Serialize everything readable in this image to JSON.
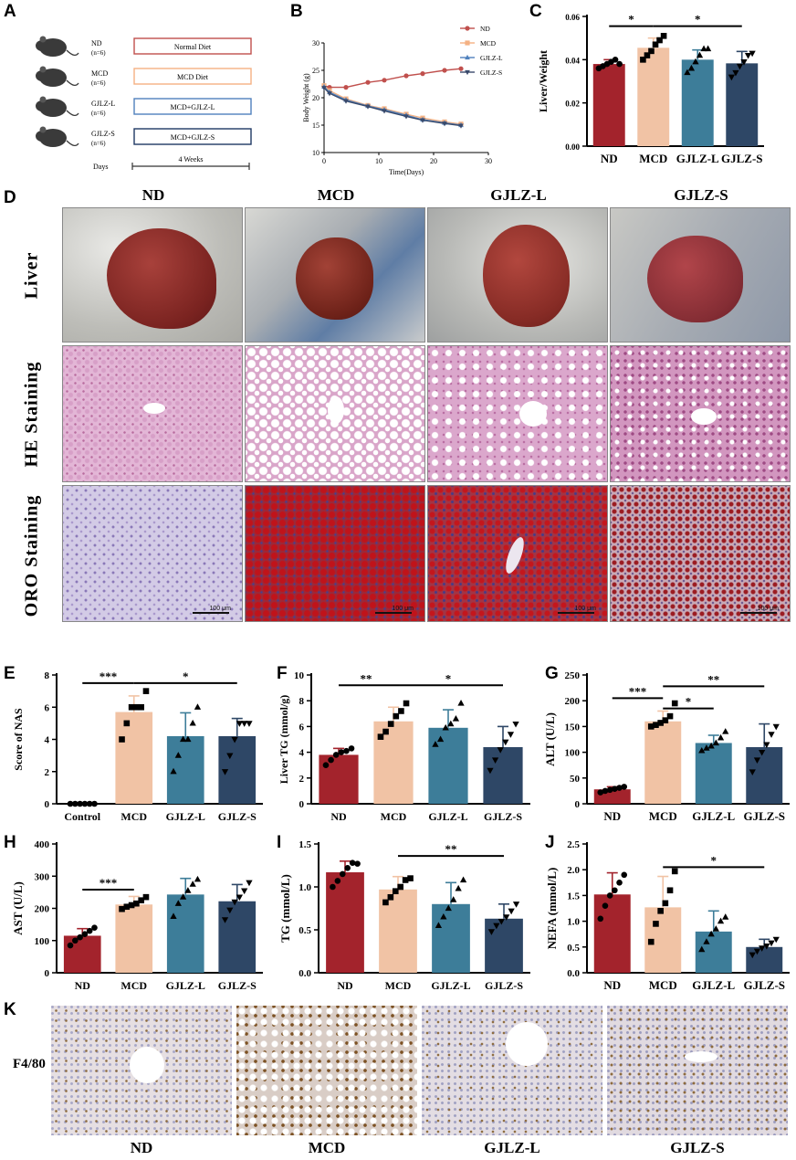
{
  "panels": {
    "A": "A",
    "B": "B",
    "C": "C",
    "D": "D",
    "E": "E",
    "F": "F",
    "G": "G",
    "H": "H",
    "I": "I",
    "J": "J",
    "K": "K"
  },
  "panel_a": {
    "groups": [
      {
        "name": "ND",
        "n": "(n=6)",
        "diet": "Normal Diet",
        "color": "#c0504d"
      },
      {
        "name": "MCD",
        "n": "(n=6)",
        "diet": "MCD Diet",
        "color": "#f4b183"
      },
      {
        "name": "GJLZ-L",
        "n": "(n=6)",
        "diet": "MCD+GJLZ-L",
        "color": "#4f81bd"
      },
      {
        "name": "GJLZ-S",
        "n": "(n=6)",
        "diet": "MCD+GJLZ-S",
        "color": "#1f3864"
      }
    ],
    "days_label": "Days",
    "duration": "4 Weeks"
  },
  "panel_d": {
    "columns": [
      "ND",
      "MCD",
      "GJLZ-L",
      "GJLZ-S"
    ],
    "rows": [
      "Liver",
      "HE Staining",
      "ORO Staining"
    ],
    "scalebar": "100 μm"
  },
  "panel_k": {
    "row_label": "F4/80",
    "columns": [
      "ND",
      "MCD",
      "GJLZ-L",
      "GJLZ-S"
    ]
  },
  "colors": {
    "ND": "#a3232c",
    "MCD": "#f1c3a5",
    "GJLZL": "#3d7d99",
    "GJLZS": "#2e4766"
  },
  "chart_data": [
    {
      "id": "B",
      "type": "line",
      "xlabel": "Time(Days)",
      "ylabel": "Body Weight (g)",
      "xlim": [
        0,
        30
      ],
      "ylim": [
        10,
        30
      ],
      "xticks": [
        0,
        10,
        20,
        30
      ],
      "yticks": [
        10,
        15,
        20,
        25,
        30
      ],
      "legend": "top-right",
      "series": [
        {
          "name": "ND",
          "color": "#c0504d",
          "marker": "circle",
          "x": [
            0,
            1,
            4,
            8,
            11,
            15,
            18,
            22,
            25
          ],
          "y": [
            22.2,
            21.9,
            21.9,
            22.8,
            23.2,
            24.0,
            24.4,
            25.0,
            25.3
          ]
        },
        {
          "name": "MCD",
          "color": "#f4b183",
          "marker": "square",
          "x": [
            0,
            1,
            4,
            8,
            11,
            15,
            18,
            22,
            25
          ],
          "y": [
            22.2,
            21.3,
            19.8,
            18.6,
            18.0,
            17.0,
            16.3,
            15.6,
            15.2
          ]
        },
        {
          "name": "GJLZ-L",
          "color": "#4f81bd",
          "marker": "triangle",
          "x": [
            0,
            1,
            4,
            8,
            11,
            15,
            18,
            22,
            25
          ],
          "y": [
            22.0,
            21.0,
            19.6,
            18.5,
            17.8,
            16.8,
            16.0,
            15.4,
            15.0
          ]
        },
        {
          "name": "GJLZ-S",
          "color": "#3a4a6b",
          "marker": "triangle-down",
          "x": [
            0,
            1,
            4,
            8,
            11,
            15,
            18,
            22,
            25
          ],
          "y": [
            21.8,
            20.8,
            19.4,
            18.4,
            17.6,
            16.6,
            15.9,
            15.3,
            14.9
          ]
        }
      ]
    },
    {
      "id": "C",
      "type": "bar",
      "ylabel": "Liver/Weight",
      "categories": [
        "ND",
        "MCD",
        "GJLZ-L",
        "GJLZ-S"
      ],
      "values": [
        0.038,
        0.0455,
        0.04,
        0.0383
      ],
      "errors": [
        0.002,
        0.0045,
        0.0045,
        0.0055
      ],
      "points": [
        [
          0.036,
          0.037,
          0.038,
          0.039,
          0.04,
          0.038
        ],
        [
          0.04,
          0.042,
          0.044,
          0.047,
          0.049,
          0.051
        ],
        [
          0.034,
          0.036,
          0.039,
          0.042,
          0.045,
          0.045
        ],
        [
          0.032,
          0.034,
          0.037,
          0.039,
          0.042,
          0.043
        ]
      ],
      "markers": [
        "circle",
        "square",
        "triangle",
        "triangle-down"
      ],
      "ylim": [
        0,
        0.06
      ],
      "yticks": [
        0.0,
        0.02,
        0.04,
        0.06
      ],
      "tick_fmt": "2",
      "sig": [
        {
          "from": 0,
          "to": 1,
          "text": "*",
          "y": 0.0555
        },
        {
          "from": 1,
          "to": 3,
          "text": "*",
          "y": 0.0555
        }
      ]
    },
    {
      "id": "E",
      "type": "bar",
      "ylabel": "Score of NAS",
      "categories": [
        "Control",
        "MCD",
        "GJLZ-L",
        "GJLZ-S"
      ],
      "values": [
        0,
        5.7,
        4.2,
        4.2
      ],
      "errors": [
        0,
        1.0,
        1.45,
        1.1
      ],
      "points": [
        [
          0,
          0,
          0,
          0,
          0,
          0
        ],
        [
          4,
          5,
          6,
          6,
          6,
          7
        ],
        [
          2,
          3,
          4,
          4,
          5,
          6
        ],
        [
          2,
          3,
          4,
          5,
          5,
          5
        ]
      ],
      "markers": [
        "circle",
        "square",
        "triangle",
        "triangle-down"
      ],
      "ylim": [
        0,
        8
      ],
      "yticks": [
        0,
        2,
        4,
        6,
        8
      ],
      "tick_fmt": "0",
      "sig": [
        {
          "from": 0,
          "to": 1,
          "text": "***",
          "y": 7.5
        },
        {
          "from": 1,
          "to": 3,
          "text": "*",
          "y": 7.5
        }
      ]
    },
    {
      "id": "F",
      "type": "bar",
      "ylabel": "Liver TG (mmol/g)",
      "categories": [
        "ND",
        "MCD",
        "GJLZ-L",
        "GJLZ-S"
      ],
      "values": [
        3.8,
        6.4,
        5.9,
        4.4
      ],
      "errors": [
        0.5,
        1.1,
        1.4,
        1.6
      ],
      "points": [
        [
          3.0,
          3.4,
          3.8,
          4.0,
          4.1,
          4.3
        ],
        [
          5.2,
          5.6,
          6.2,
          6.8,
          7.2,
          7.8
        ],
        [
          4.6,
          5.0,
          5.9,
          6.2,
          6.6,
          7.8
        ],
        [
          2.6,
          3.4,
          4.2,
          4.8,
          5.4,
          6.2
        ]
      ],
      "markers": [
        "circle",
        "square",
        "triangle",
        "triangle-down"
      ],
      "ylim": [
        0,
        10
      ],
      "yticks": [
        0,
        2,
        4,
        6,
        8,
        10
      ],
      "tick_fmt": "0",
      "sig": [
        {
          "from": 0,
          "to": 1,
          "text": "**",
          "y": 9.2
        },
        {
          "from": 1,
          "to": 3,
          "text": "*",
          "y": 9.2
        }
      ]
    },
    {
      "id": "G",
      "type": "bar",
      "ylabel": "ALT (U/L)",
      "categories": [
        "ND",
        "MCD",
        "GJLZ-L",
        "GJLZ-S"
      ],
      "values": [
        28,
        160,
        118,
        110
      ],
      "errors": [
        5,
        20,
        15,
        45
      ],
      "points": [
        [
          22,
          25,
          27,
          29,
          31,
          33
        ],
        [
          150,
          153,
          157,
          162,
          170,
          195
        ],
        [
          103,
          108,
          112,
          118,
          128,
          140
        ],
        [
          62,
          85,
          100,
          115,
          135,
          150
        ]
      ],
      "markers": [
        "circle",
        "square",
        "triangle",
        "triangle-down"
      ],
      "ylim": [
        0,
        250
      ],
      "yticks": [
        0,
        50,
        100,
        150,
        200,
        250
      ],
      "tick_fmt": "0",
      "sig": [
        {
          "from": 0,
          "to": 1,
          "text": "***",
          "y": 205
        },
        {
          "from": 1,
          "to": 2,
          "text": "*",
          "y": 185
        },
        {
          "from": 1,
          "to": 3,
          "text": "**",
          "y": 228
        }
      ]
    },
    {
      "id": "H",
      "type": "bar",
      "ylabel": "AST (U/L)",
      "categories": [
        "ND",
        "MCD",
        "GJLZ-L",
        "GJLZ-S"
      ],
      "values": [
        115,
        212,
        243,
        222
      ],
      "errors": [
        22,
        25,
        50,
        52
      ],
      "points": [
        [
          85,
          100,
          110,
          120,
          130,
          140
        ],
        [
          198,
          205,
          210,
          215,
          225,
          235
        ],
        [
          175,
          215,
          235,
          255,
          275,
          290
        ],
        [
          165,
          195,
          220,
          235,
          255,
          280
        ]
      ],
      "markers": [
        "circle",
        "square",
        "triangle",
        "triangle-down"
      ],
      "ylim": [
        0,
        400
      ],
      "yticks": [
        0,
        100,
        200,
        300,
        400
      ],
      "tick_fmt": "0",
      "sig": [
        {
          "from": 0,
          "to": 1,
          "text": "***",
          "y": 258
        }
      ]
    },
    {
      "id": "I",
      "type": "bar",
      "ylabel": "TG (mmol/L)",
      "categories": [
        "ND",
        "MCD",
        "GJLZ-L",
        "GJLZ-S"
      ],
      "values": [
        1.17,
        0.97,
        0.8,
        0.63
      ],
      "errors": [
        0.13,
        0.15,
        0.25,
        0.17
      ],
      "points": [
        [
          1.0,
          1.07,
          1.15,
          1.22,
          1.28,
          1.27
        ],
        [
          0.82,
          0.88,
          0.95,
          1.0,
          1.08,
          1.1
        ],
        [
          0.55,
          0.65,
          0.75,
          0.85,
          0.98,
          1.08
        ],
        [
          0.48,
          0.55,
          0.6,
          0.65,
          0.72,
          0.8
        ]
      ],
      "markers": [
        "circle",
        "square",
        "triangle",
        "triangle-down"
      ],
      "ylim": [
        0,
        1.5
      ],
      "yticks": [
        0.0,
        0.5,
        1.0,
        1.5
      ],
      "tick_fmt": "1",
      "sig": [
        {
          "from": 1,
          "to": 3,
          "text": "**",
          "y": 1.36
        }
      ]
    },
    {
      "id": "J",
      "type": "bar",
      "ylabel": "NEFA (mmol/L)",
      "categories": [
        "ND",
        "MCD",
        "GJLZ-L",
        "GJLZ-S"
      ],
      "values": [
        1.52,
        1.27,
        0.8,
        0.5
      ],
      "errors": [
        0.42,
        0.6,
        0.4,
        0.15
      ],
      "points": [
        [
          1.05,
          1.3,
          1.5,
          1.6,
          1.75,
          1.9
        ],
        [
          0.6,
          0.95,
          1.2,
          1.35,
          1.6,
          1.97
        ],
        [
          0.45,
          0.6,
          0.75,
          0.85,
          1.0,
          1.08
        ],
        [
          0.35,
          0.42,
          0.48,
          0.52,
          0.58,
          0.65
        ]
      ],
      "markers": [
        "circle",
        "square",
        "triangle",
        "triangle-down"
      ],
      "ylim": [
        0,
        2.5
      ],
      "yticks": [
        0.0,
        0.5,
        1.0,
        1.5,
        2.0,
        2.5
      ],
      "tick_fmt": "1",
      "sig": [
        {
          "from": 1,
          "to": 3,
          "text": "*",
          "y": 2.05
        }
      ]
    }
  ]
}
